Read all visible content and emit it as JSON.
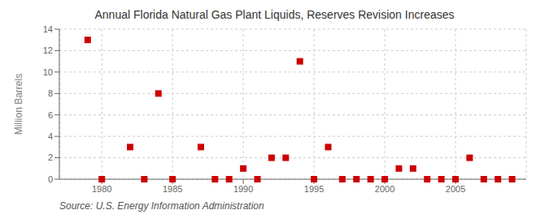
{
  "chart_data": {
    "type": "scatter",
    "title": "Annual Florida Natural Gas Plant Liquids, Reserves Revision Increases",
    "ylabel": "Million Barrels",
    "source": "Source: U.S. Energy Information Administration",
    "x": [
      1979,
      1980,
      1982,
      1983,
      1984,
      1985,
      1987,
      1988,
      1989,
      1990,
      1991,
      1992,
      1993,
      1994,
      1995,
      1996,
      1997,
      1998,
      1999,
      2000,
      2001,
      2002,
      2003,
      2004,
      2005,
      2006,
      2007,
      2008,
      2009
    ],
    "values": [
      13.0,
      0.0,
      3.0,
      0.0,
      8.0,
      0.0,
      3.0,
      0.0,
      0.0,
      1.0,
      0.0,
      2.0,
      2.0,
      11.0,
      0.0,
      3.0,
      0.0,
      0.0,
      0.0,
      0.0,
      1.0,
      1.0,
      0.0,
      0.0,
      0.0,
      2.0,
      0.0,
      0.0,
      0.0
    ],
    "color": "#cc0000",
    "marker": "square",
    "xlim": [
      1977,
      2010
    ],
    "xticks": [
      1980,
      1985,
      1990,
      1995,
      2000,
      2005
    ],
    "ylim": [
      0,
      14
    ],
    "yticks": [
      0,
      2,
      4,
      6,
      8,
      10,
      12,
      14
    ],
    "grid": true
  }
}
